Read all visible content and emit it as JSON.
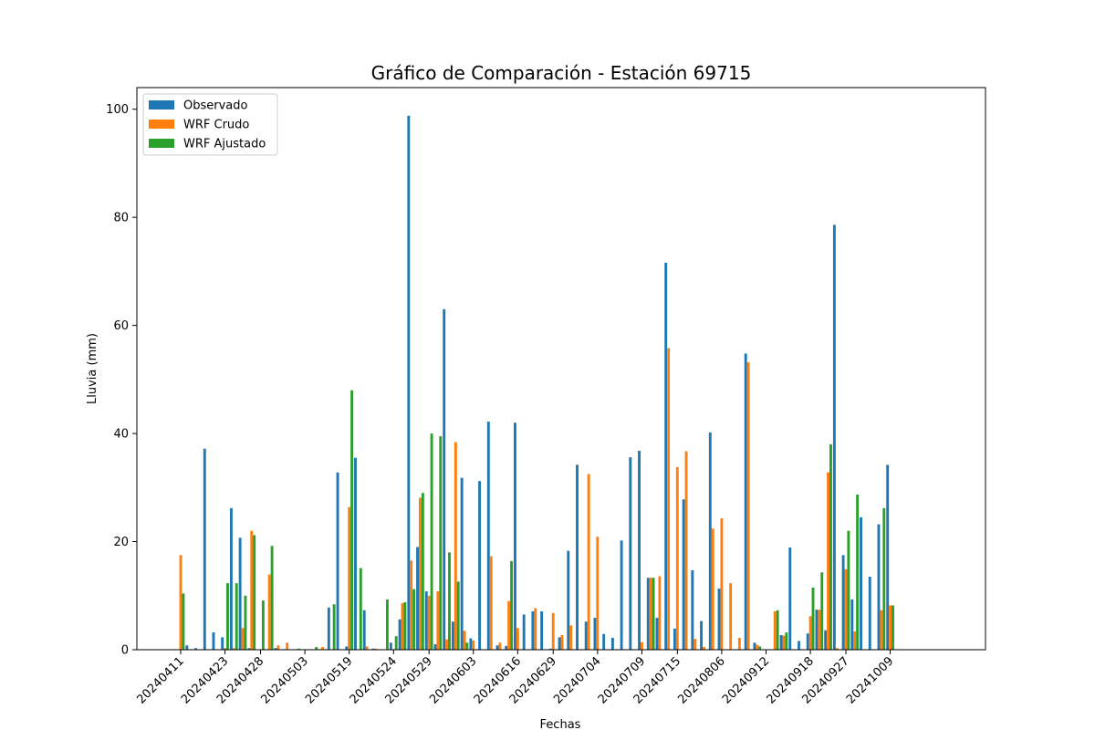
{
  "chart_data": {
    "type": "bar",
    "title": "Gráfico de Comparación - Estación 69715",
    "xlabel": "Fechas",
    "ylabel": "Lluvia (mm)",
    "ylim": [
      0,
      104
    ],
    "yticks": [
      0,
      20,
      40,
      60,
      80,
      100
    ],
    "grid": false,
    "legend_position": "top-left",
    "xtick_labels": [
      "20240411",
      "20240423",
      "20240428",
      "20240503",
      "20240519",
      "20240524",
      "20240529",
      "20240603",
      "20240616",
      "20240629",
      "20240704",
      "20240709",
      "20240715",
      "20240806",
      "20240912",
      "20240918",
      "20240927",
      "20241009"
    ],
    "series": [
      {
        "name": "Observado",
        "color": "#1f77b4",
        "values": [
          0,
          0.8,
          0.3,
          37.2,
          3.2,
          2.3,
          26.2,
          20.7,
          0.3,
          0,
          0,
          0.3,
          0.1,
          0,
          0,
          0.1,
          0.1,
          7.8,
          32.8,
          0.6,
          35.5,
          7.3,
          0.2,
          0,
          1.3,
          5.6,
          98.8,
          19,
          10.8,
          1,
          63,
          5.2,
          31.8,
          2.1,
          31.2,
          42.2,
          0.8,
          0.7,
          42,
          6.5,
          7.1,
          7.1,
          0.2,
          2.3,
          18.3,
          34.2,
          5.2,
          5.9,
          2.9,
          2.2,
          20.2,
          35.6,
          36.8,
          13.3,
          5.9,
          71.6,
          3.9,
          27.8,
          14.7,
          5.3,
          40.2,
          11.3,
          0,
          0,
          54.8,
          1.3,
          0,
          0,
          2.7,
          18.9,
          1.6,
          3,
          7.4,
          3.6,
          78.6,
          17.5,
          9.3,
          24.5,
          13.5,
          23.2,
          34.2
        ]
      },
      {
        "name": "WRF Crudo",
        "color": "#ff7f0e",
        "values": [
          17.5,
          0,
          0,
          0,
          0,
          0.3,
          0.3,
          4,
          22,
          0,
          13.9,
          0.8,
          1.3,
          0,
          0,
          0,
          0.5,
          0,
          0,
          26.4,
          0,
          0.6,
          0.2,
          0,
          0,
          8.6,
          16.5,
          28.1,
          10,
          10.8,
          1.9,
          38.4,
          3.5,
          1.7,
          0,
          17.3,
          1.3,
          9,
          4,
          0,
          7.7,
          0,
          6.8,
          2.7,
          4.5,
          0,
          32.5,
          20.9,
          0,
          0,
          0,
          0,
          1.4,
          13.3,
          13.6,
          55.8,
          33.8,
          36.7,
          2,
          0.5,
          22.4,
          24.3,
          12.3,
          2.2,
          53.2,
          0.9,
          0,
          7.1,
          2.6,
          0,
          0.1,
          6.2,
          7.4,
          32.8,
          0.3,
          14.9,
          3.4,
          0,
          0,
          7.3,
          8.2
        ]
      },
      {
        "name": "WRF Ajustado",
        "color": "#2ca02c",
        "values": [
          10.4,
          0,
          0,
          0,
          0,
          12.3,
          12.3,
          10,
          21.2,
          9.1,
          19.2,
          0,
          0,
          0.2,
          0,
          0.5,
          0,
          8.4,
          0,
          48,
          15.1,
          0,
          0,
          9.3,
          2.5,
          8.8,
          11.2,
          29,
          40,
          39.5,
          18,
          12.6,
          1.3,
          0,
          0,
          0,
          0,
          16.4,
          0,
          0,
          0,
          0,
          0,
          0,
          0,
          0,
          0,
          0,
          0,
          0,
          0,
          0,
          0,
          13.3,
          0,
          0,
          0,
          0,
          0,
          0,
          0,
          0,
          0,
          0,
          0,
          0.6,
          0,
          7.3,
          3.2,
          0,
          0,
          11.5,
          14.3,
          38,
          0,
          22,
          28.7,
          0,
          0,
          26.2,
          8.2
        ]
      }
    ]
  }
}
